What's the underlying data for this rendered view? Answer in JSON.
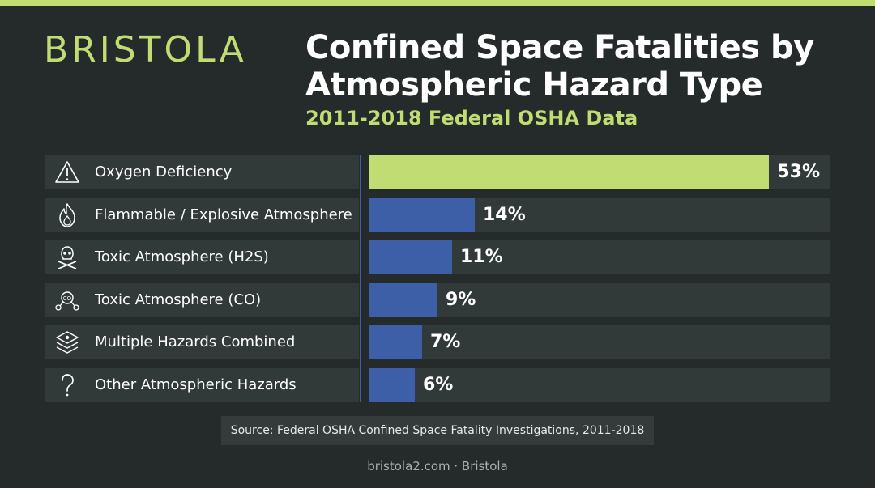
{
  "brand": {
    "logo_text": "BRISTOLA",
    "accent_color": "#c2dc74"
  },
  "header": {
    "title_line1": "Confined Space Fatalities by",
    "title_line2": "Atmospheric Hazard Type",
    "subtitle": "2011-2018 Federal OSHA Data"
  },
  "chart_data": {
    "type": "bar",
    "orientation": "horizontal",
    "title": "Confined Space Fatalities by Atmospheric Hazard Type",
    "subtitle": "2011-2018 Federal OSHA Data",
    "categories": [
      "Oxygen Deficiency",
      "Flammable / Explosive Atmosphere",
      "Toxic Atmosphere (H2S)",
      "Toxic Atmosphere (CO)",
      "Multiple Hazards Combined",
      "Other Atmospheric Hazards"
    ],
    "values": [
      53,
      14,
      11,
      9,
      7,
      6
    ],
    "value_labels": [
      "53%",
      "14%",
      "11%",
      "9%",
      "7%",
      "6%"
    ],
    "icons": [
      "warning-icon",
      "flame-icon",
      "skull-crossbones-icon",
      "co-molecule-icon",
      "layers-hazard-icon",
      "question-icon"
    ],
    "xlim": [
      0,
      53
    ],
    "colors": {
      "highlight": "#c2dc74",
      "default": "#3c5fa8"
    },
    "grid": false
  },
  "source": "Source: Federal OSHA Confined Space Fatality Investigations, 2011-2018",
  "footer": "bristola2.com · Bristola"
}
